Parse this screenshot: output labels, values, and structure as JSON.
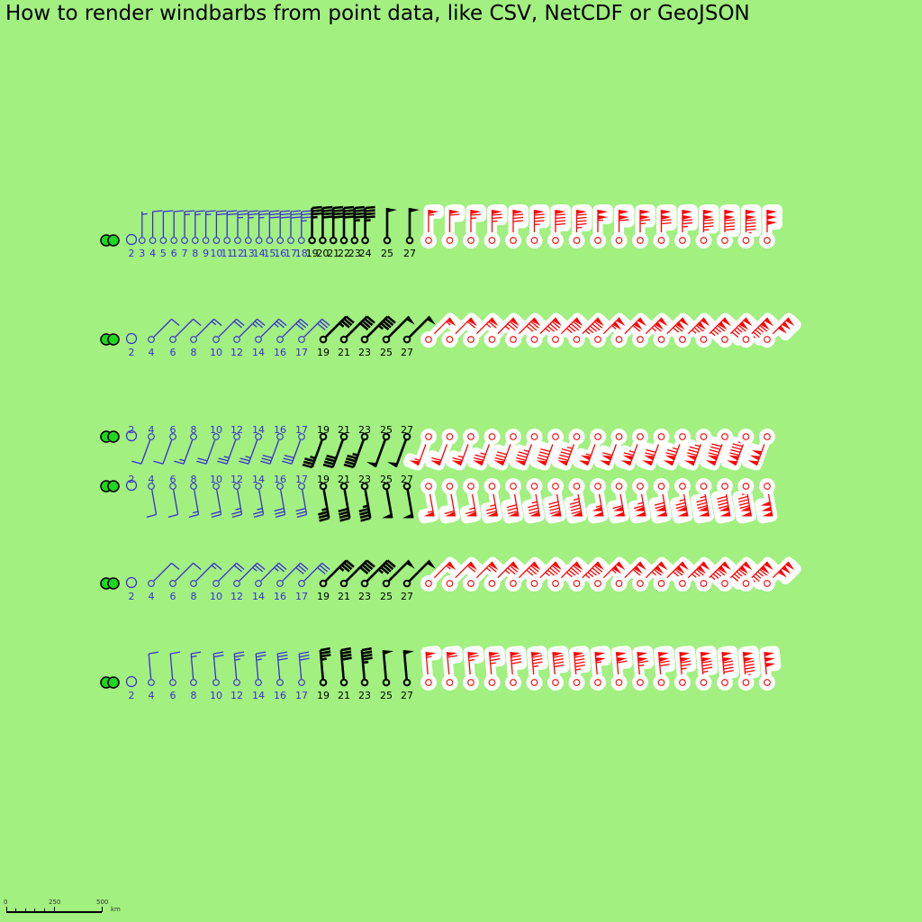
{
  "title": "How to render windbarbs from point data, like CSV, NetCDF or GeoJSON",
  "colors": {
    "background": "#a1f080",
    "blue_style": "#3a2bd6",
    "black_style": "#000000",
    "red_style": "#ff0000",
    "halo": "#ffffff",
    "calm_fill": "#1ed81e"
  },
  "rows": [
    {
      "name": "row-north",
      "direction_deg": 0,
      "labels": [
        "2",
        "3",
        "4",
        "5",
        "6",
        "7",
        "8",
        "9",
        "10",
        "11",
        "12",
        "13",
        "14",
        "15",
        "16",
        "17",
        "18",
        "19",
        "20",
        "21",
        "22",
        "23",
        "24",
        "25",
        "27"
      ]
    },
    {
      "name": "row-northeast",
      "direction_deg": 45,
      "labels": [
        "2",
        "4",
        "6",
        "8",
        "10",
        "12",
        "14",
        "16",
        "17",
        "19",
        "21",
        "23",
        "25",
        "27"
      ]
    },
    {
      "name": "row-southwest",
      "direction_deg": 200,
      "labels": [
        "2",
        "4",
        "6",
        "8",
        "10",
        "12",
        "14",
        "16",
        "17",
        "19",
        "21",
        "23",
        "25",
        "27"
      ]
    },
    {
      "name": "row-south",
      "direction_deg": 170,
      "labels": [
        "2",
        "4",
        "6",
        "8",
        "10",
        "12",
        "14",
        "16",
        "17",
        "19",
        "21",
        "23",
        "25",
        "27"
      ]
    },
    {
      "name": "row-east-northeast",
      "direction_deg": 45,
      "labels": [
        "2",
        "4",
        "6",
        "8",
        "10",
        "12",
        "14",
        "16",
        "17",
        "19",
        "21",
        "23",
        "25",
        "27"
      ]
    },
    {
      "name": "row-west",
      "direction_deg": 355,
      "labels": [
        "2",
        "4",
        "6",
        "8",
        "10",
        "12",
        "14",
        "16",
        "17",
        "19",
        "21",
        "23",
        "25",
        "27"
      ]
    }
  ],
  "scale": {
    "labels": [
      "0",
      "250",
      "500"
    ],
    "unit": "km"
  }
}
